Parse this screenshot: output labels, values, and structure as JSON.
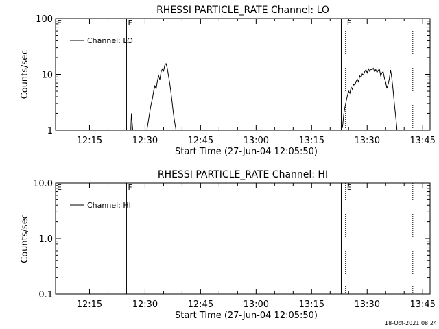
{
  "chart_data": [
    {
      "type": "line",
      "title": "RHESSI PARTICLE_RATE Channel: LO",
      "xlabel": "Start Time (27-Jun-04 12:05:50)",
      "ylabel": "Counts/sec",
      "y_scale": "log",
      "ylim": [
        1,
        100
      ],
      "xlim": [
        "12:05:50",
        "13:47:00"
      ],
      "xtick_labels": [
        "12:15",
        "12:30",
        "12:45",
        "13:00",
        "13:15",
        "13:30",
        "13:45"
      ],
      "ytick_labels": [
        "1",
        "10",
        "100"
      ],
      "legend": {
        "position": "top-left",
        "entries": [
          "Channel: LO"
        ]
      },
      "grid": false,
      "series": [
        {
          "name": "Channel: LO",
          "segments": [
            {
              "x": [
                "12:26:00",
                "12:26:20",
                "12:26:40",
                "12:27:00"
              ],
              "y": [
                0.5,
                2.0,
                1.05,
                0.5
              ]
            },
            {
              "x": [
                "12:30:00",
                "12:30:30",
                "12:31:00",
                "12:31:30",
                "12:32:00",
                "12:32:20",
                "12:32:40",
                "12:33:00",
                "12:33:20",
                "12:33:40",
                "12:34:00",
                "12:34:20",
                "12:34:40",
                "12:35:00",
                "12:35:20",
                "12:35:40",
                "12:36:00",
                "12:36:20",
                "12:36:40",
                "12:37:00",
                "12:37:20",
                "12:37:40",
                "12:38:00",
                "12:38:30",
                "12:39:00"
              ],
              "y": [
                0.5,
                1.0,
                1.6,
                2.6,
                3.7,
                5.0,
                6.2,
                5.5,
                7.6,
                9.5,
                8.0,
                11.0,
                12.5,
                11.5,
                14.5,
                15.5,
                13.0,
                9.5,
                7.0,
                4.8,
                3.1,
                2.0,
                1.4,
                0.9,
                0.5
              ]
            },
            {
              "x": [
                "13:23:20",
                "13:23:40",
                "13:24:00",
                "13:24:20",
                "13:24:40",
                "13:25:00",
                "13:25:20",
                "13:25:40",
                "13:26:00",
                "13:26:20",
                "13:26:40",
                "13:27:00",
                "13:27:20",
                "13:27:40",
                "13:28:00",
                "13:28:20",
                "13:28:40",
                "13:29:00",
                "13:29:20",
                "13:29:40",
                "13:30:00",
                "13:30:20",
                "13:30:40",
                "13:31:00",
                "13:31:20",
                "13:31:40",
                "13:32:00",
                "13:32:20",
                "13:32:40",
                "13:33:00",
                "13:33:20",
                "13:33:40",
                "13:34:00",
                "13:34:20",
                "13:34:40",
                "13:35:00",
                "13:35:20",
                "13:35:40",
                "13:36:00",
                "13:36:20",
                "13:36:40",
                "13:37:00",
                "13:37:20",
                "13:37:40",
                "13:38:00",
                "13:38:20"
              ],
              "y": [
                1.1,
                1.9,
                2.6,
                3.3,
                4.2,
                5.0,
                4.6,
                5.9,
                5.4,
                6.7,
                6.4,
                7.5,
                8.2,
                7.4,
                9.4,
                8.8,
                10.2,
                9.7,
                11.2,
                12.2,
                10.6,
                12.6,
                11.4,
                12.4,
                12.1,
                12.9,
                11.3,
                12.2,
                10.8,
                11.9,
                12.2,
                9.4,
                10.6,
                11.2,
                8.6,
                7.3,
                5.6,
                6.6,
                8.4,
                12.0,
                8.6,
                5.4,
                3.1,
                1.9,
                1.15,
                0.5
              ]
            }
          ]
        }
      ],
      "annotations": [
        {
          "label": "E",
          "x": "12:05:50",
          "style": "edge"
        },
        {
          "label": "F",
          "x": "12:25:00",
          "style": "solid"
        },
        {
          "label": "",
          "x": "13:23:00",
          "style": "solid"
        },
        {
          "label": "E",
          "x": "13:24:10",
          "style": "dotted"
        },
        {
          "label": "",
          "x": "13:42:20",
          "style": "dotted"
        }
      ]
    },
    {
      "type": "line",
      "title": "RHESSI PARTICLE_RATE Channel: HI",
      "xlabel": "Start Time (27-Jun-04 12:05:50)",
      "ylabel": "Counts/sec",
      "y_scale": "log",
      "ylim": [
        0.1,
        10
      ],
      "xlim": [
        "12:05:50",
        "13:47:00"
      ],
      "xtick_labels": [
        "12:15",
        "12:30",
        "12:45",
        "13:00",
        "13:15",
        "13:30",
        "13:45"
      ],
      "ytick_labels": [
        "0.1",
        "1.0",
        "10.0"
      ],
      "legend": {
        "position": "top-left",
        "entries": [
          "Channel: HI"
        ]
      },
      "grid": false,
      "series": [
        {
          "name": "Channel: HI",
          "segments": []
        }
      ],
      "annotations": [
        {
          "label": "E",
          "x": "12:05:50",
          "style": "edge"
        },
        {
          "label": "F",
          "x": "12:25:00",
          "style": "solid"
        },
        {
          "label": "",
          "x": "13:23:00",
          "style": "solid"
        },
        {
          "label": "E",
          "x": "13:24:10",
          "style": "dotted"
        },
        {
          "label": "",
          "x": "13:42:20",
          "style": "dotted"
        }
      ]
    }
  ],
  "footer": {
    "timestamp": "18-Oct-2021 08:24"
  }
}
